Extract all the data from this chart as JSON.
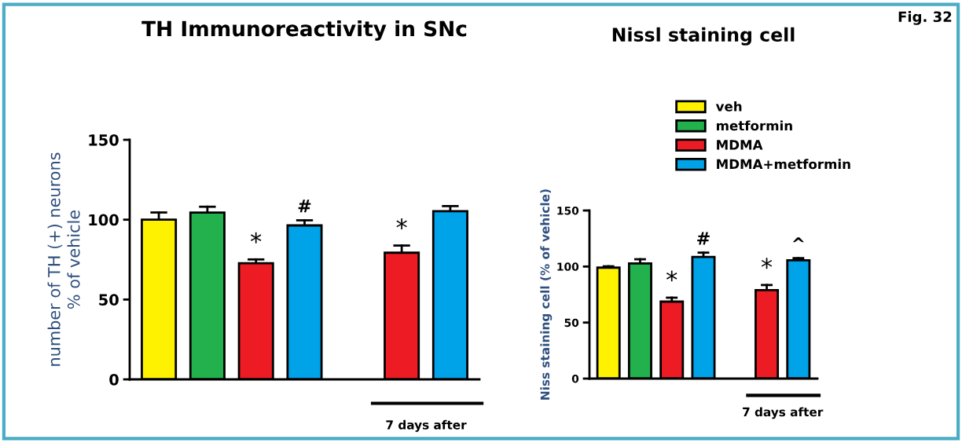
{
  "chart_data": [
    {
      "type": "bar",
      "title": "TH Immunoreactivity in SNc",
      "ylabel": "number of TH (+) neurons\n% of vehicle",
      "categories": [
        null,
        null,
        null,
        null,
        null,
        null,
        null
      ],
      "series": [
        {
          "color": "#fff200",
          "values": [
            100,
            null,
            null,
            null,
            null,
            null,
            null
          ],
          "errors": [
            [
              100,
              104.5
            ],
            null,
            null,
            null,
            null,
            null,
            null
          ]
        },
        {
          "color": "#22b14c",
          "values": [
            null,
            104.5,
            null,
            null,
            null,
            null,
            null
          ],
          "errors": [
            null,
            [
              104.5,
              108.1
            ],
            null,
            null,
            null,
            null,
            null
          ]
        },
        {
          "color": "#ed1c24",
          "values": [
            null,
            null,
            72.7,
            null,
            null,
            79.3,
            null
          ],
          "errors": [
            null,
            null,
            [
              72.7,
              75.1
            ],
            null,
            null,
            [
              79.3,
              83.8
            ],
            null
          ],
          "value_labels": [
            null,
            null,
            "*",
            null,
            null,
            "*",
            null
          ]
        },
        {
          "color": "#00a2e8",
          "values": [
            null,
            null,
            null,
            96.4,
            null,
            null,
            105.3
          ],
          "errors": [
            null,
            null,
            null,
            [
              96.4,
              99.6
            ],
            null,
            null,
            [
              105.3,
              108.5
            ]
          ],
          "value_labels": [
            null,
            null,
            null,
            "#",
            null,
            null,
            null
          ]
        }
      ],
      "ylim": [
        0,
        150
      ],
      "yticks": [
        0,
        50,
        100,
        150
      ],
      "annotations": [
        "7 days after"
      ]
    },
    {
      "type": "bar",
      "title": "Nissl staining cell",
      "ylabel": "Niss staining cell (% of vehicle)",
      "categories": [
        null,
        null,
        null,
        null,
        null,
        null,
        null
      ],
      "series": [
        {
          "name": "veh",
          "color": "#fff200",
          "values": [
            99,
            null,
            null,
            null,
            null,
            null,
            null
          ],
          "errors": [
            [
              99,
              100.2
            ],
            null,
            null,
            null,
            null,
            null,
            null
          ]
        },
        {
          "name": "metformin",
          "color": "#22b14c",
          "values": [
            null,
            102.7,
            null,
            null,
            null,
            null,
            null
          ],
          "errors": [
            null,
            [
              102.7,
              106.5
            ],
            null,
            null,
            null,
            null,
            null
          ]
        },
        {
          "name": "MDMA",
          "color": "#ed1c24",
          "values": [
            null,
            null,
            68.7,
            null,
            null,
            79,
            null
          ],
          "errors": [
            null,
            null,
            [
              68.7,
              72.2
            ],
            null,
            null,
            [
              79,
              83.5
            ],
            null
          ],
          "value_labels": [
            null,
            null,
            "*",
            null,
            null,
            "*",
            null
          ]
        },
        {
          "name": "MDMA+metformin",
          "color": "#00a2e8",
          "values": [
            null,
            null,
            null,
            108.6,
            null,
            null,
            105.6
          ],
          "errors": [
            null,
            null,
            null,
            [
              108.6,
              112.4
            ],
            null,
            null,
            [
              105.6,
              107.5
            ]
          ],
          "value_labels": [
            null,
            null,
            null,
            "#",
            null,
            null,
            "^"
          ]
        }
      ],
      "ylim": [
        0,
        150
      ],
      "yticks": [
        0,
        50,
        100,
        150
      ],
      "legend": "top right",
      "annotations": [
        "7 days after",
        "Fig. 32"
      ]
    }
  ]
}
